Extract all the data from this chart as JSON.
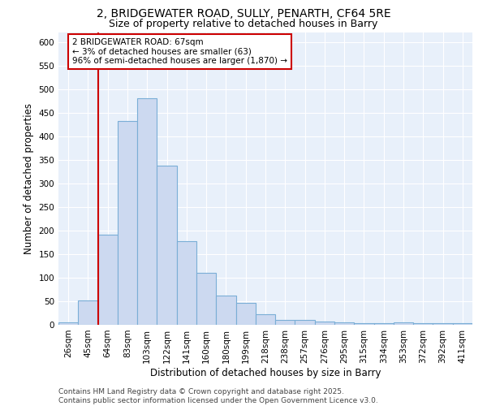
{
  "title1": "2, BRIDGEWATER ROAD, SULLY, PENARTH, CF64 5RE",
  "title2": "Size of property relative to detached houses in Barry",
  "xlabel": "Distribution of detached houses by size in Barry",
  "ylabel": "Number of detached properties",
  "categories": [
    "26sqm",
    "45sqm",
    "64sqm",
    "83sqm",
    "103sqm",
    "122sqm",
    "141sqm",
    "160sqm",
    "180sqm",
    "199sqm",
    "218sqm",
    "238sqm",
    "257sqm",
    "276sqm",
    "295sqm",
    "315sqm",
    "334sqm",
    "353sqm",
    "372sqm",
    "392sqm",
    "411sqm"
  ],
  "values": [
    5,
    52,
    192,
    432,
    481,
    338,
    178,
    110,
    62,
    47,
    23,
    10,
    11,
    7,
    6,
    4,
    3,
    5,
    3,
    3,
    3
  ],
  "bar_fill_color": "#ccd9f0",
  "bar_edge_color": "#7aaed6",
  "highlight_edge_color": "#cc0000",
  "highlight_bar_index": 2,
  "vline_color": "#cc0000",
  "annotation_text": "2 BRIDGEWATER ROAD: 67sqm\n← 3% of detached houses are smaller (63)\n96% of semi-detached houses are larger (1,870) →",
  "annotation_box_color": "#ffffff",
  "annotation_box_edge_color": "#cc0000",
  "ylim": [
    0,
    620
  ],
  "yticks": [
    0,
    50,
    100,
    150,
    200,
    250,
    300,
    350,
    400,
    450,
    500,
    550,
    600
  ],
  "bg_color": "#e8f0fa",
  "footer_text": "Contains HM Land Registry data © Crown copyright and database right 2025.\nContains public sector information licensed under the Open Government Licence v3.0.",
  "title_fontsize": 10,
  "subtitle_fontsize": 9,
  "axis_label_fontsize": 8.5,
  "tick_fontsize": 7.5,
  "annotation_fontsize": 7.5,
  "footer_fontsize": 6.5
}
